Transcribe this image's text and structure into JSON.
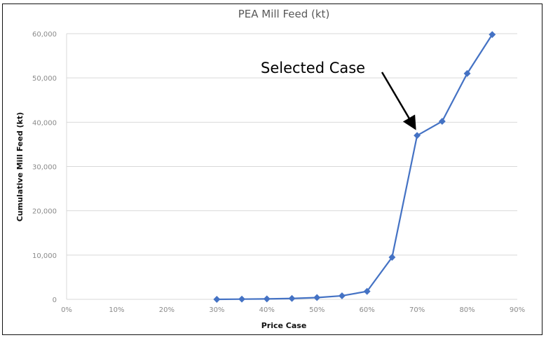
{
  "chart_data": {
    "type": "line",
    "title": "PEA Mill Feed (kt)",
    "xlabel": "Price Case",
    "ylabel": "Cumulative Mill Feed (kt)",
    "xlim": [
      0,
      90
    ],
    "ylim": [
      0,
      60000
    ],
    "x_ticks": [
      "0%",
      "10%",
      "20%",
      "30%",
      "40%",
      "50%",
      "60%",
      "70%",
      "80%",
      "90%"
    ],
    "y_ticks": [
      "0",
      "10,000",
      "20,000",
      "30,000",
      "40,000",
      "50,000",
      "60,000"
    ],
    "grid": "horizontal",
    "series": [
      {
        "name": "Cumulative Mill Feed",
        "color": "#4472c4",
        "x": [
          30,
          35,
          40,
          45,
          50,
          55,
          60,
          65,
          70,
          75,
          80,
          85
        ],
        "y": [
          0,
          50,
          100,
          200,
          400,
          800,
          1800,
          9500,
          37000,
          40200,
          51000,
          59800
        ]
      }
    ],
    "annotation": {
      "text": "Selected Case",
      "x": 70,
      "y": 37000
    }
  }
}
